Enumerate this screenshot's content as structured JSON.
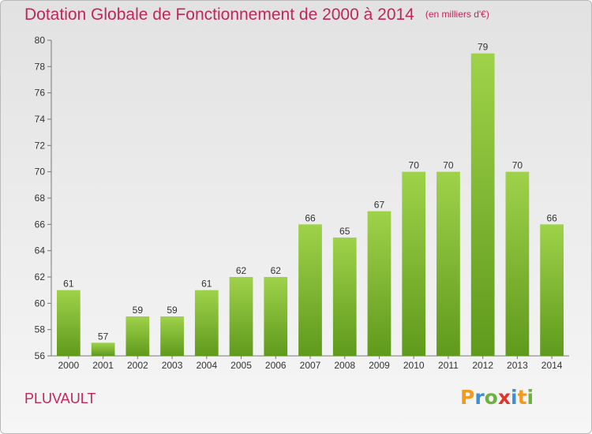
{
  "header": {
    "title": "Dotation Globale de Fonctionnement de 2000 à 2014",
    "unit": "(en milliers d'€)"
  },
  "commune": "PLUVAULT",
  "logo": {
    "letters": [
      {
        "char": "P",
        "color": "#f29a1e"
      },
      {
        "char": "r",
        "color": "#3b8fd2"
      },
      {
        "char": "o",
        "color": "#6cb33e"
      },
      {
        "char": "x",
        "color": "#e2332f"
      },
      {
        "char": "i",
        "color": "#3b8fd2"
      },
      {
        "char": "t",
        "color": "#f29a1e"
      },
      {
        "char": "i",
        "color": "#6cb33e"
      }
    ]
  },
  "chart_data": {
    "type": "bar",
    "title": "Dotation Globale de Fonctionnement de 2000 à 2014",
    "subtitle": "(en milliers d'€)",
    "categories": [
      "2000",
      "2001",
      "2002",
      "2003",
      "2004",
      "2005",
      "2006",
      "2007",
      "2008",
      "2009",
      "2010",
      "2011",
      "2012",
      "2013",
      "2014"
    ],
    "values": [
      61,
      57,
      59,
      59,
      61,
      62,
      62,
      66,
      65,
      67,
      70,
      70,
      79,
      70,
      66
    ],
    "ylim": [
      56,
      80
    ],
    "yticks": [
      56,
      58,
      60,
      62,
      64,
      66,
      68,
      70,
      72,
      74,
      76,
      78,
      80
    ],
    "grid": false,
    "data_labels": true,
    "colors": {
      "bar_top": "#9fd24a",
      "bar_bottom": "#5f9a1c",
      "text": "#333333",
      "axis": "#777777"
    }
  }
}
